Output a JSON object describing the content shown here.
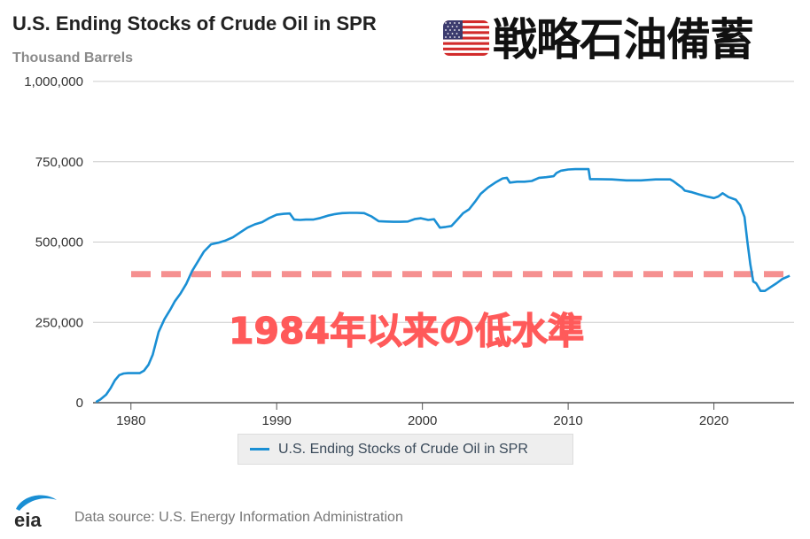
{
  "header": {
    "title": "U.S. Ending Stocks of Crude Oil in SPR",
    "subtitle": "Thousand Barrels",
    "jp_title": "戦略石油備蓄",
    "flag_icon": "us-flag-icon"
  },
  "annotation": {
    "text": "1984年以来の低水準",
    "color": "#ff5a5a",
    "reference_value": 400000,
    "line_color": "#f59090"
  },
  "legend": {
    "label": "U.S. Ending Stocks of Crude Oil in SPR"
  },
  "footer": {
    "logo_text": "eia",
    "source": "Data source: U.S. Energy Information Administration"
  },
  "colors": {
    "series": "#1a8fd4",
    "grid": "#cccccc",
    "axis_text": "#333333"
  },
  "chart_data": {
    "type": "line",
    "title": "U.S. Ending Stocks of Crude Oil in SPR",
    "ylabel": "Thousand Barrels",
    "xlabel": "",
    "xlim": [
      1977.4,
      2025.5
    ],
    "ylim": [
      0,
      1000000
    ],
    "x_ticks": [
      1980,
      1990,
      2000,
      2010,
      2020
    ],
    "x_tick_labels": [
      "1980",
      "1990",
      "2000",
      "2010",
      "2020"
    ],
    "y_ticks": [
      0,
      250000,
      500000,
      750000,
      1000000
    ],
    "y_tick_labels": [
      "0",
      "250,000",
      "500,000",
      "750,000",
      "1,000,000"
    ],
    "grid": true,
    "legend_position": "bottom",
    "series": [
      {
        "name": "U.S. Ending Stocks of Crude Oil in SPR",
        "x": [
          1977.6,
          1977.9,
          1978.3,
          1978.6,
          1978.9,
          1979.2,
          1979.5,
          1979.8,
          1980.2,
          1980.6,
          1980.9,
          1981.2,
          1981.5,
          1981.9,
          1982.3,
          1982.7,
          1983.0,
          1983.4,
          1983.8,
          1984.2,
          1984.6,
          1985.0,
          1985.5,
          1986.0,
          1986.5,
          1987.0,
          1987.5,
          1988.0,
          1988.5,
          1989.0,
          1989.5,
          1990.0,
          1990.5,
          1990.9,
          1991.2,
          1991.6,
          1992.0,
          1992.5,
          1993.0,
          1993.5,
          1994.0,
          1994.5,
          1995.0,
          1995.5,
          1996.0,
          1996.5,
          1997.0,
          1997.5,
          1998.0,
          1998.5,
          1999.0,
          1999.5,
          1999.9,
          2000.4,
          2000.8,
          2001.2,
          2001.6,
          2002.0,
          2002.4,
          2002.8,
          2003.2,
          2003.6,
          2004.0,
          2004.5,
          2005.0,
          2005.5,
          2005.8,
          2006.0,
          2006.5,
          2007.0,
          2007.5,
          2008.0,
          2008.5,
          2009.0,
          2009.2,
          2009.5,
          2010.0,
          2010.5,
          2011.0,
          2011.4,
          2011.5,
          2012.0,
          2013.0,
          2014.0,
          2015.0,
          2016.0,
          2017.0,
          2017.2,
          2017.5,
          2017.8,
          2018.0,
          2018.5,
          2019.0,
          2019.5,
          2020.0,
          2020.3,
          2020.6,
          2021.0,
          2021.5,
          2021.8,
          2022.1,
          2022.3,
          2022.5,
          2022.7,
          2022.9,
          2023.2,
          2023.5,
          2023.9,
          2024.3,
          2024.7,
          2025.2
        ],
        "values": [
          2000,
          10000,
          25000,
          45000,
          70000,
          86000,
          91000,
          92000,
          92000,
          92000,
          100000,
          118000,
          150000,
          220000,
          260000,
          290000,
          315000,
          340000,
          370000,
          410000,
          440000,
          470000,
          493000,
          498000,
          505000,
          515000,
          530000,
          545000,
          555000,
          562000,
          575000,
          585000,
          588000,
          589000,
          570000,
          569000,
          570000,
          570000,
          575000,
          582000,
          587000,
          590000,
          591000,
          591000,
          590000,
          580000,
          565000,
          564000,
          563000,
          563000,
          564000,
          572000,
          574000,
          569000,
          571000,
          545000,
          547000,
          550000,
          570000,
          590000,
          602000,
          625000,
          650000,
          670000,
          685000,
          698000,
          700000,
          685000,
          688000,
          688000,
          690000,
          700000,
          702000,
          705000,
          715000,
          722000,
          726000,
          727000,
          727000,
          727000,
          696000,
          696000,
          695000,
          692000,
          692000,
          695000,
          695000,
          690000,
          680000,
          670000,
          660000,
          655000,
          648000,
          642000,
          637000,
          642000,
          652000,
          640000,
          632000,
          615000,
          578000,
          500000,
          430000,
          377000,
          372000,
          348000,
          348000,
          360000,
          372000,
          385000,
          395000
        ]
      }
    ]
  }
}
